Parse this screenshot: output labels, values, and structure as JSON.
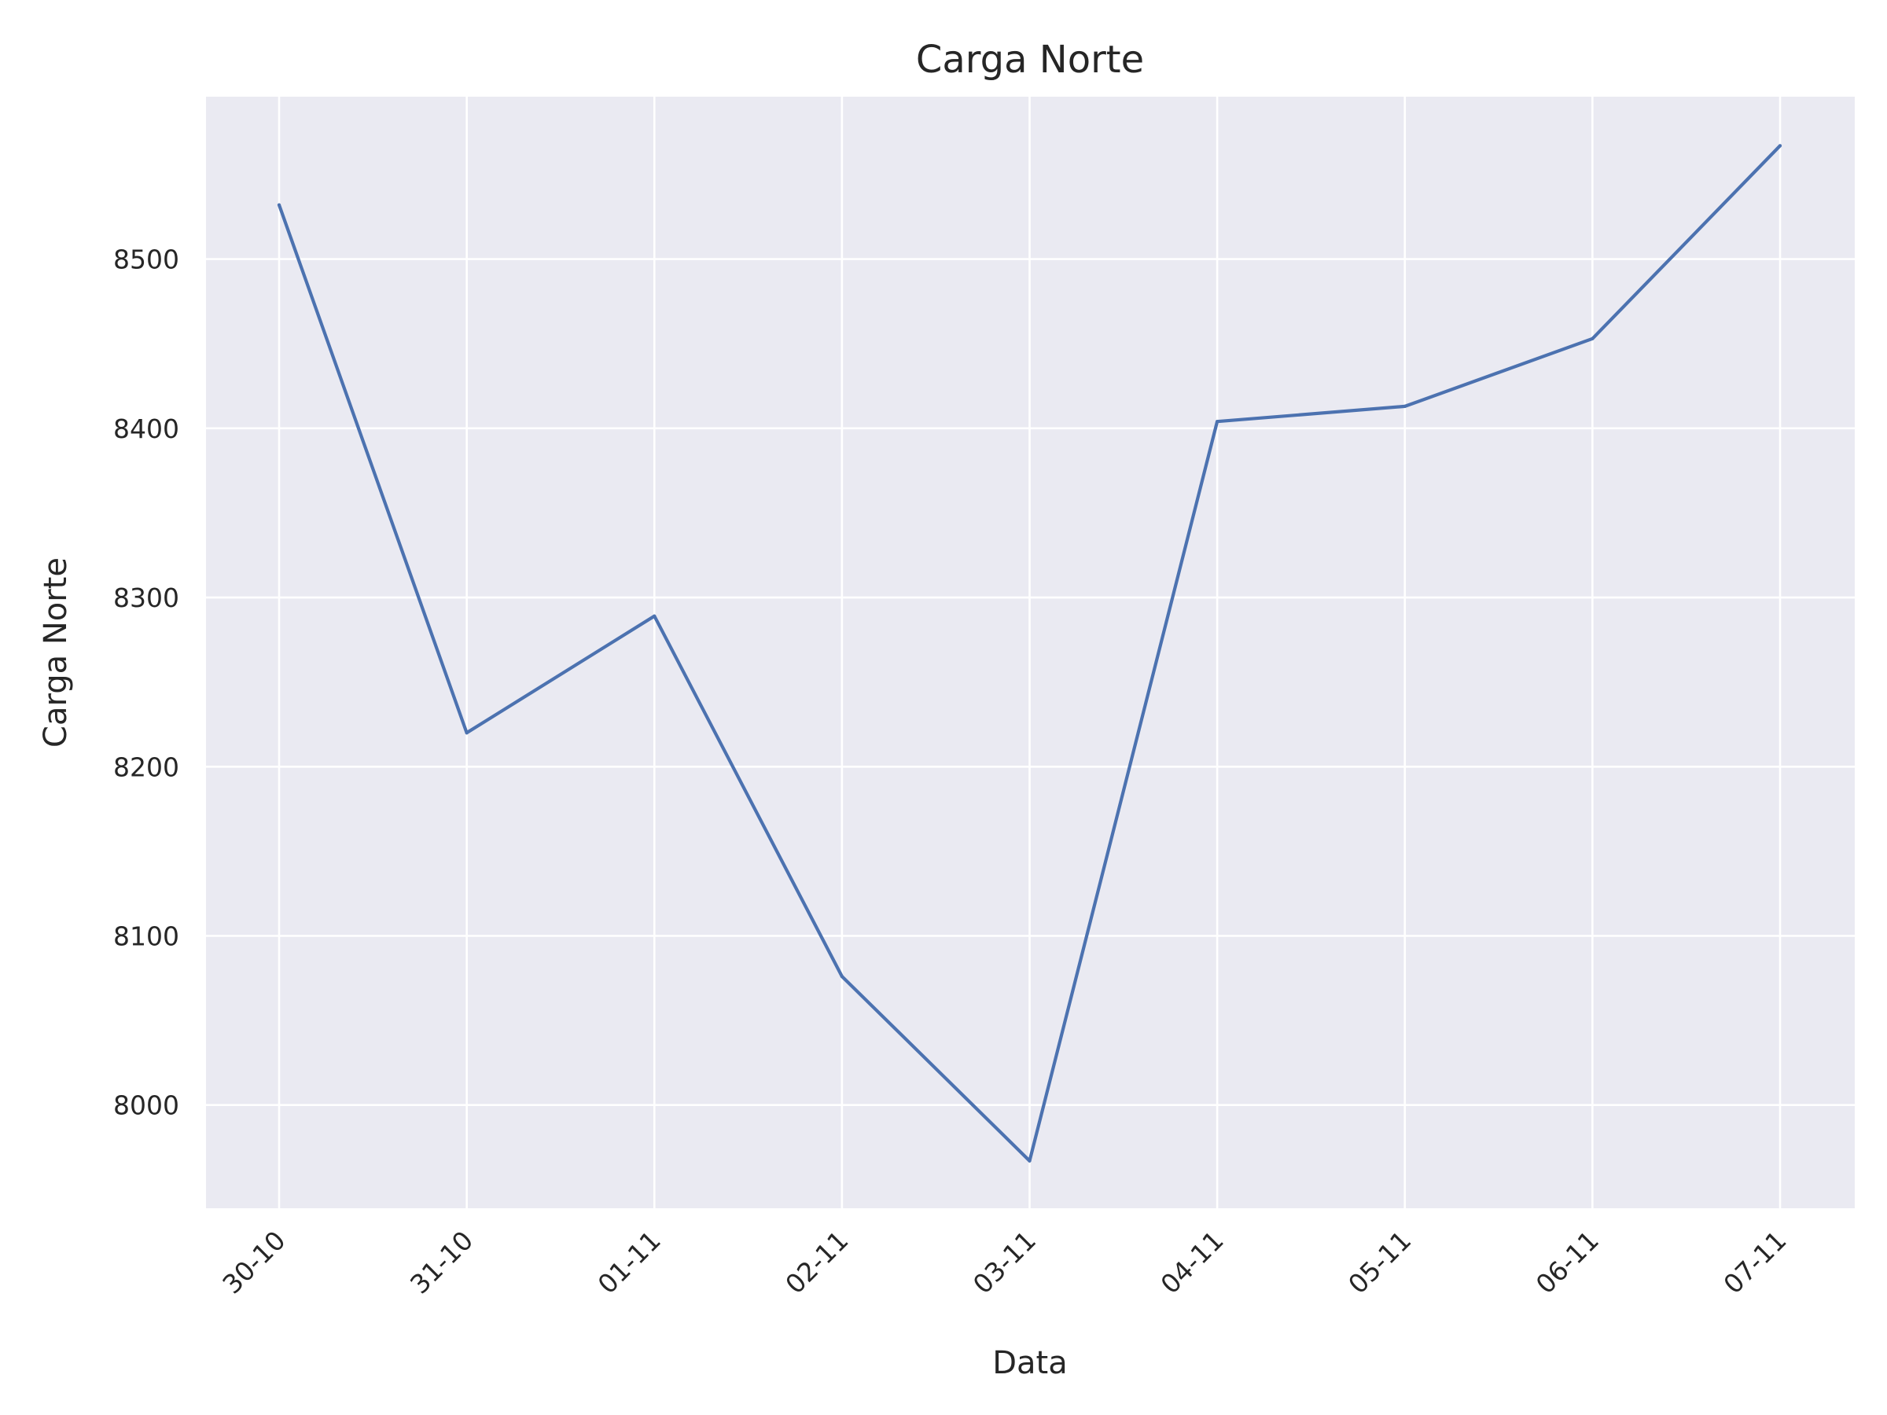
{
  "chart_data": {
    "type": "line",
    "title": "Carga Norte",
    "xlabel": "Data",
    "ylabel": "Carga Norte",
    "categories": [
      "30-10",
      "31-10",
      "01-11",
      "02-11",
      "03-11",
      "04-11",
      "05-11",
      "06-11",
      "07-11"
    ],
    "series": [
      {
        "values": [
          8532,
          8220,
          8289,
          8076,
          7967,
          8404,
          8413,
          8453,
          8567
        ],
        "color": "#4c72b0"
      }
    ],
    "ylim": [
      7939,
      8596
    ],
    "yticks": [
      8000,
      8100,
      8200,
      8300,
      8400,
      8500
    ],
    "grid": true,
    "style": {
      "background": "#eaeaf2",
      "grid_color": "#ffffff",
      "text_color": "#262626"
    }
  }
}
